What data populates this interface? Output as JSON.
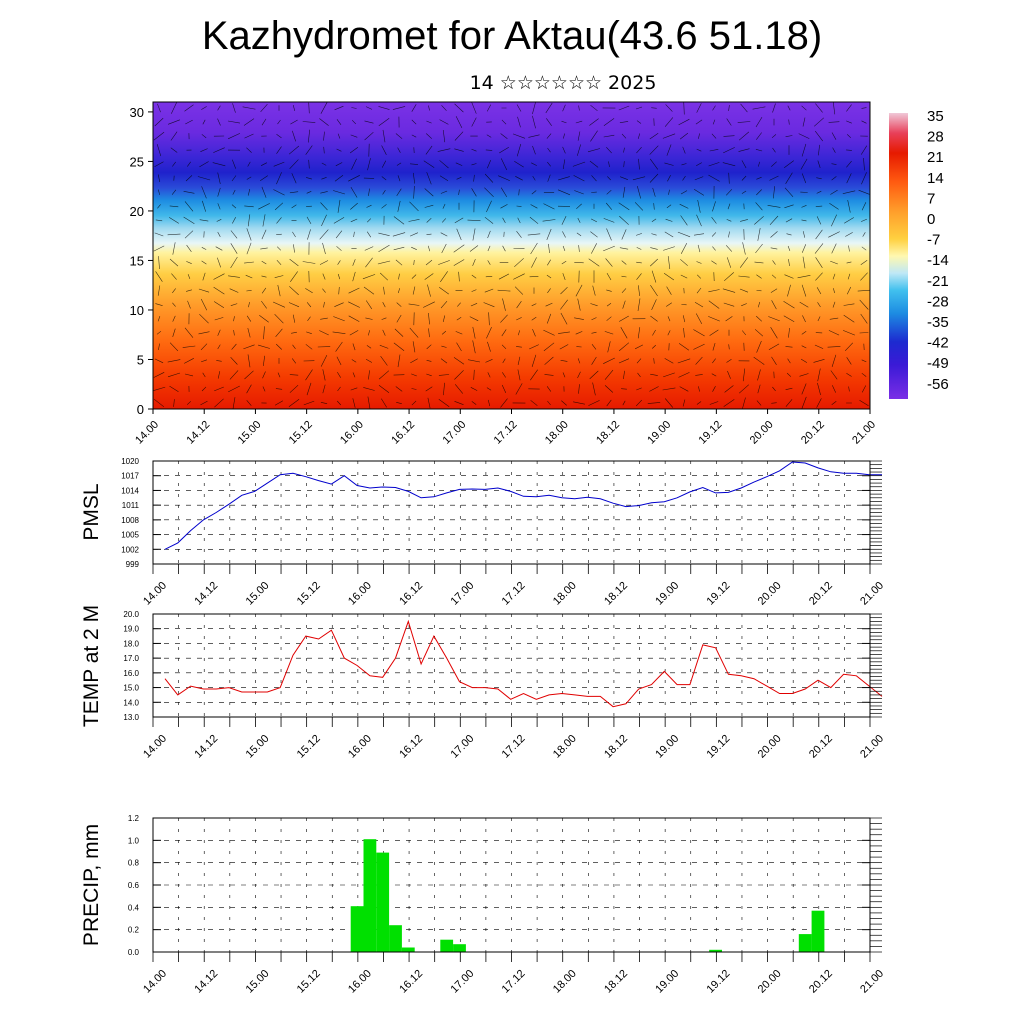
{
  "header": {
    "title": "Kazhydromet for Aktau(43.6 51.18)",
    "subtitle": "14 ☆☆☆☆☆☆ 2025"
  },
  "colors": {
    "pmsl_line": "#0000cc",
    "temp_line": "#e00000",
    "precip_bar": "#00e000"
  },
  "x_ticks": [
    "14.00",
    "14.12",
    "15.00",
    "15.12",
    "16.00",
    "16.12",
    "17.00",
    "17.12",
    "18.00",
    "18.12",
    "19.00",
    "19.12",
    "20.00",
    "20.12",
    "21.00"
  ],
  "chart_data": [
    {
      "type": "heatmap",
      "title": "",
      "y_ticks": [
        "0",
        "5",
        "10",
        "15",
        "20",
        "25",
        "30"
      ],
      "ylim": [
        0,
        31
      ],
      "x_ticks": [
        "14.00",
        "14.12",
        "15.00",
        "15.12",
        "16.00",
        "16.12",
        "17.00",
        "17.12",
        "18.00",
        "18.12",
        "19.00",
        "19.12",
        "20.00",
        "20.12",
        "21.00"
      ],
      "colorbar_labels": [
        "35",
        "28",
        "21",
        "14",
        "7",
        "0",
        "-7",
        "-14",
        "-21",
        "-28",
        "-35",
        "-42",
        "-49",
        "-56"
      ],
      "colorbar_range": [
        -60,
        40
      ],
      "overlay": "wind vectors"
    },
    {
      "type": "line",
      "ylabel": "PMSL",
      "ylim": [
        999,
        1020
      ],
      "y_ticks": [
        "1020",
        "1017",
        "1014",
        "1011",
        "1008",
        "1005",
        "1002",
        "999"
      ],
      "x": [
        0,
        0.5,
        1,
        1.5,
        2,
        2.5,
        3,
        3.5,
        4,
        4.5,
        5,
        5.5,
        6,
        6.5,
        7,
        7.5,
        8,
        8.5,
        9,
        9.5,
        10,
        10.5,
        11,
        11.5,
        12,
        12.5,
        13,
        13.5,
        14,
        14.5,
        15,
        15.5,
        16,
        16.5,
        17,
        17.5,
        18,
        18.5,
        19,
        19.5,
        20,
        20.5,
        21,
        21.5,
        22,
        22.5,
        23,
        23.5,
        24,
        24.5,
        25,
        25.5,
        26,
        26.5,
        27,
        27.5,
        28
      ],
      "values": [
        1002,
        1003.3,
        1005.8,
        1008,
        1009.5,
        1011.2,
        1013,
        1013.8,
        1015.5,
        1017.2,
        1017.5,
        1016.8,
        1016,
        1015.3,
        1017,
        1015,
        1014.5,
        1014.7,
        1014.6,
        1013.8,
        1012.5,
        1012.7,
        1013.5,
        1014.2,
        1014.3,
        1014.2,
        1014.5,
        1013.8,
        1012.8,
        1012.7,
        1013,
        1012.5,
        1012.3,
        1012.6,
        1012.3,
        1011.4,
        1010.7,
        1010.9,
        1011.5,
        1011.7,
        1012.5,
        1013.7,
        1014.6,
        1013.5,
        1013.6,
        1014.5,
        1015.7,
        1016.8,
        1018,
        1019.8,
        1019.6,
        1018.6,
        1017.8,
        1017.5,
        1017.5,
        1017.2,
        1017.2
      ]
    },
    {
      "type": "line",
      "ylabel": "TEMP at 2 M",
      "ylim": [
        13.0,
        20.0
      ],
      "y_ticks": [
        "20.0",
        "19.0",
        "18.0",
        "17.0",
        "16.0",
        "15.0",
        "14.0",
        "13.0"
      ],
      "x": [
        0,
        0.5,
        1,
        1.5,
        2,
        2.5,
        3,
        3.5,
        4,
        4.5,
        5,
        5.5,
        6,
        6.5,
        7,
        7.5,
        8,
        8.5,
        9,
        9.5,
        10,
        10.5,
        11,
        11.5,
        12,
        12.5,
        13,
        13.5,
        14,
        14.5,
        15,
        15.5,
        16,
        16.5,
        17,
        17.5,
        18,
        18.5,
        19,
        19.5,
        20,
        20.5,
        21,
        21.5,
        22,
        22.5,
        23,
        23.5,
        24,
        24.5,
        25,
        25.5,
        26,
        26.5,
        27,
        27.5,
        28
      ],
      "values": [
        15.6,
        14.5,
        15.1,
        14.9,
        14.9,
        15.0,
        14.7,
        14.7,
        14.7,
        15.0,
        17.2,
        18.5,
        18.3,
        18.9,
        17.0,
        16.5,
        15.8,
        15.7,
        17.0,
        19.5,
        16.6,
        18.5,
        17.0,
        15.4,
        15.0,
        15.0,
        14.9,
        14.2,
        14.6,
        14.2,
        14.5,
        14.6,
        14.5,
        14.4,
        14.4,
        13.7,
        13.9,
        14.9,
        15.2,
        16.1,
        15.2,
        15.2,
        17.9,
        17.7,
        15.9,
        15.8,
        15.6,
        15.1,
        14.6,
        14.6,
        14.9,
        15.5,
        15.0,
        15.9,
        15.8,
        15.1,
        14.4
      ]
    },
    {
      "type": "bar",
      "ylabel": "PRECIP, mm",
      "ylim": [
        0.0,
        1.2
      ],
      "y_ticks": [
        "1.2",
        "1.0",
        "0.8",
        "0.6",
        "0.4",
        "0.2",
        "0.0"
      ],
      "bars": [
        {
          "x": 7.5,
          "value": 0.41
        },
        {
          "x": 8.0,
          "value": 1.01
        },
        {
          "x": 8.5,
          "value": 0.89
        },
        {
          "x": 9.0,
          "value": 0.24
        },
        {
          "x": 9.5,
          "value": 0.04
        },
        {
          "x": 11.0,
          "value": 0.11
        },
        {
          "x": 11.5,
          "value": 0.07
        },
        {
          "x": 21.5,
          "value": 0.02
        },
        {
          "x": 25.0,
          "value": 0.16
        },
        {
          "x": 25.5,
          "value": 0.37
        }
      ]
    }
  ]
}
